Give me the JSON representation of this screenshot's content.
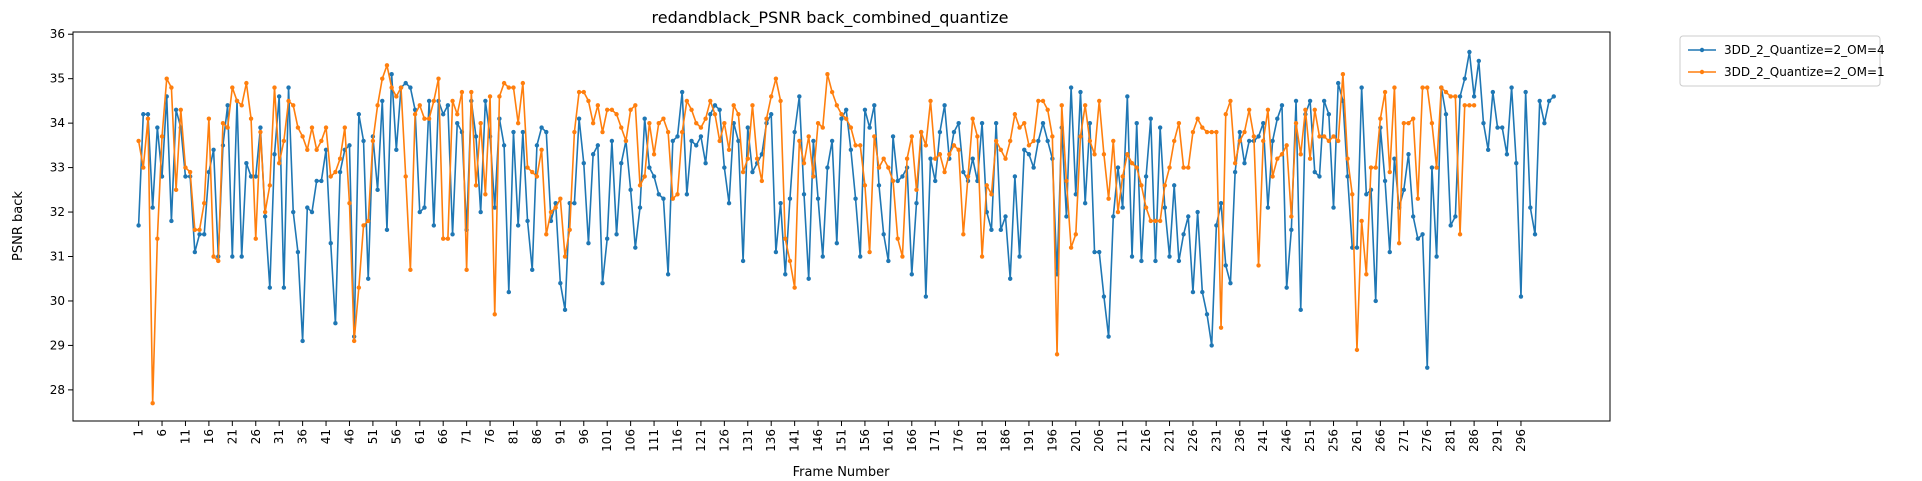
{
  "chart_data": {
    "type": "line",
    "title": "redandblack_PSNR back_combined_quantize",
    "xlabel": "Frame Number",
    "ylabel": "PSNR back",
    "ylim": [
      27.3,
      36.05
    ],
    "yticks": [
      28,
      29,
      30,
      31,
      32,
      33,
      34,
      35,
      36
    ],
    "xticks": [
      1,
      6,
      11,
      16,
      21,
      26,
      31,
      36,
      41,
      46,
      51,
      56,
      61,
      66,
      71,
      76,
      81,
      86,
      91,
      96,
      101,
      106,
      111,
      116,
      121,
      126,
      131,
      136,
      141,
      146,
      151,
      156,
      161,
      166,
      171,
      176,
      181,
      186,
      191,
      196,
      201,
      206,
      211,
      216,
      221,
      226,
      231,
      236,
      241,
      246,
      251,
      256,
      261,
      266,
      271,
      276,
      281,
      286,
      291,
      296
    ],
    "xrange": [
      -13,
      315
    ],
    "legend_position": "outside-top-right",
    "grid": false,
    "series": [
      {
        "name": "3DD_2_Quantize=2_OM=4",
        "color": "#1f77b4",
        "x_start": 1,
        "values": [
          31.7,
          34.2,
          34.2,
          32.1,
          33.9,
          32.8,
          34.6,
          31.8,
          34.3,
          33.9,
          32.8,
          32.8,
          31.1,
          31.5,
          31.5,
          32.9,
          33.4,
          31.0,
          33.5,
          34.4,
          31.0,
          34.5,
          31.0,
          33.1,
          32.8,
          32.8,
          33.9,
          31.9,
          30.3,
          33.3,
          34.6,
          30.3,
          34.8,
          32.0,
          31.1,
          29.1,
          32.1,
          32.0,
          32.7,
          32.7,
          33.4,
          31.3,
          29.5,
          32.9,
          33.4,
          33.5,
          29.2,
          34.2,
          33.6,
          30.5,
          33.7,
          32.5,
          34.5,
          31.6,
          35.1,
          33.4,
          34.8,
          34.9,
          34.8,
          34.3,
          32.0,
          32.1,
          34.5,
          31.7,
          34.5,
          34.2,
          34.4,
          31.5,
          34.0,
          33.8,
          31.6,
          34.5,
          33.7,
          32.0,
          34.5,
          33.7,
          32.1,
          34.1,
          33.5,
          30.2,
          33.8,
          31.7,
          33.8,
          31.8,
          30.7,
          33.5,
          33.9,
          33.8,
          31.8,
          32.2,
          30.4,
          29.8,
          32.2,
          32.2,
          34.1,
          33.1,
          31.3,
          33.3,
          33.5,
          30.4,
          31.4,
          33.6,
          31.5,
          33.1,
          33.6,
          32.5,
          31.2,
          32.1,
          34.1,
          33.0,
          32.8,
          32.4,
          32.3,
          30.6,
          33.6,
          33.7,
          34.7,
          32.4,
          33.6,
          33.5,
          33.7,
          33.1,
          34.2,
          34.4,
          34.3,
          33.0,
          32.2,
          34.0,
          33.6,
          30.9,
          33.9,
          32.9,
          33.1,
          33.3,
          34.0,
          34.2,
          31.1,
          32.2,
          30.6,
          32.3,
          33.8,
          34.6,
          32.4,
          30.5,
          33.6,
          32.3,
          31.0,
          33.0,
          33.6,
          31.3,
          34.1,
          34.3,
          33.4,
          32.3,
          31.0,
          34.3,
          33.9,
          34.4,
          32.6,
          31.5,
          30.9,
          33.7,
          32.7,
          32.8,
          33.0,
          30.6,
          32.2,
          33.8,
          30.1,
          33.2,
          32.7,
          33.8,
          34.4,
          33.2,
          33.8,
          34.0,
          32.9,
          32.7,
          33.2,
          32.7,
          34.0,
          32.0,
          31.6,
          34.0,
          31.6,
          31.9,
          30.5,
          32.8,
          31.0,
          33.4,
          33.3,
          33.0,
          33.6,
          34.0,
          33.6,
          33.2,
          30.6,
          33.9,
          31.9,
          34.8,
          32.4,
          34.7,
          32.2,
          34.0,
          31.1,
          31.1,
          30.1,
          29.2,
          31.9,
          33.0,
          32.1,
          34.6,
          31.0,
          34.0,
          30.9,
          32.8,
          34.1,
          30.9,
          33.9,
          32.1,
          31.0,
          32.6,
          30.9,
          31.5,
          31.9,
          30.2,
          32.0,
          30.2,
          29.7,
          29.0,
          31.7,
          32.2,
          30.8,
          30.4,
          32.9,
          33.8,
          33.1,
          33.6,
          33.6,
          33.7,
          34.0,
          32.1,
          33.6,
          34.1,
          34.4,
          30.3,
          31.6,
          34.5,
          29.8,
          34.2,
          34.5,
          32.9,
          32.8,
          34.5,
          34.2,
          32.1,
          34.9,
          34.5,
          32.8,
          31.2,
          31.2,
          34.8,
          32.4,
          32.5,
          30.0,
          33.9,
          32.7,
          31.1,
          33.2,
          32.1,
          32.5,
          33.3,
          31.9,
          31.4,
          31.5,
          28.5,
          33.0,
          31.0,
          34.8,
          34.2,
          31.7,
          31.9,
          34.6,
          35.0,
          35.6,
          34.6,
          35.4,
          34.0,
          33.4,
          34.7,
          33.9,
          33.9,
          33.3,
          34.8,
          33.1,
          30.1,
          34.7,
          32.1,
          31.5,
          34.5,
          34.0,
          34.5,
          34.6
        ]
      },
      {
        "name": "3DD_2_Quantize=2_OM=1",
        "color": "#ff7f0e",
        "x_start": 1,
        "values": [
          33.6,
          33.0,
          34.1,
          27.7,
          31.4,
          33.7,
          35.0,
          34.8,
          32.5,
          34.3,
          33.0,
          32.9,
          31.6,
          31.6,
          32.2,
          34.1,
          31.0,
          30.9,
          34.0,
          33.9,
          34.8,
          34.5,
          34.4,
          34.9,
          34.1,
          31.4,
          33.8,
          32.0,
          32.6,
          34.8,
          33.1,
          33.6,
          34.5,
          34.4,
          33.9,
          33.7,
          33.4,
          33.9,
          33.4,
          33.6,
          33.9,
          32.8,
          32.9,
          33.2,
          33.9,
          32.2,
          29.1,
          30.3,
          31.7,
          31.8,
          33.6,
          34.4,
          35.0,
          35.3,
          34.8,
          34.6,
          34.8,
          32.8,
          30.7,
          34.2,
          34.4,
          34.1,
          34.1,
          34.5,
          35.0,
          31.4,
          31.4,
          34.5,
          34.2,
          34.7,
          30.7,
          34.7,
          32.6,
          34.0,
          32.4,
          34.6,
          29.7,
          34.6,
          34.9,
          34.8,
          34.8,
          34.0,
          34.9,
          33.0,
          32.9,
          32.8,
          33.4,
          31.5,
          32.0,
          32.1,
          32.3,
          31.0,
          31.6,
          33.8,
          34.7,
          34.7,
          34.5,
          34.0,
          34.4,
          33.8,
          34.3,
          34.3,
          34.2,
          33.9,
          33.6,
          34.3,
          34.4,
          32.6,
          32.8,
          34.0,
          33.3,
          34.0,
          34.1,
          33.8,
          32.3,
          32.4,
          33.8,
          34.5,
          34.3,
          34.0,
          33.9,
          34.1,
          34.5,
          34.2,
          33.6,
          34.0,
          33.4,
          34.4,
          34.2,
          32.9,
          33.2,
          34.4,
          33.2,
          32.7,
          34.1,
          34.6,
          35.0,
          34.5,
          31.4,
          30.9,
          30.3,
          33.6,
          33.1,
          33.7,
          32.8,
          34.0,
          33.9,
          35.1,
          34.7,
          34.4,
          34.2,
          34.1,
          33.9,
          33.5,
          33.5,
          32.6,
          31.1,
          33.7,
          33.0,
          33.2,
          33.0,
          32.7,
          31.4,
          31.0,
          33.2,
          33.7,
          32.5,
          33.8,
          33.5,
          34.5,
          33.2,
          33.3,
          32.9,
          33.3,
          33.5,
          33.4,
          31.5,
          32.8,
          34.1,
          33.7,
          31.0,
          32.6,
          32.4,
          33.6,
          33.4,
          33.2,
          33.6,
          34.2,
          33.9,
          34.0,
          33.5,
          33.6,
          34.5,
          34.5,
          34.3,
          33.7,
          28.8,
          34.4,
          32.7,
          31.2,
          31.5,
          33.7,
          34.4,
          33.6,
          33.3,
          34.5,
          33.3,
          32.3,
          33.6,
          32.0,
          32.8,
          33.3,
          33.1,
          33.0,
          32.6,
          32.1,
          31.8,
          31.8,
          31.8,
          32.6,
          33.0,
          33.6,
          34.0,
          33.0,
          33.0,
          33.8,
          34.1,
          33.9,
          33.8,
          33.8,
          33.8,
          29.4,
          34.2,
          34.5,
          33.1,
          33.6,
          33.8,
          34.3,
          33.7,
          30.8,
          33.6,
          34.3,
          32.8,
          33.2,
          33.3,
          33.5,
          31.9,
          34.0,
          33.3,
          34.3,
          33.2,
          34.3,
          33.7,
          33.7,
          33.6,
          33.7,
          33.6,
          35.1,
          33.2,
          32.4,
          28.9,
          31.8,
          30.6,
          33.0,
          33.0,
          34.1,
          34.7,
          32.9,
          34.8,
          31.3,
          34.0,
          34.0,
          34.1,
          32.3,
          34.8,
          34.8,
          34.0,
          33.0,
          34.8,
          34.7,
          34.6,
          34.6,
          31.5,
          34.4,
          34.4,
          34.4
        ]
      }
    ]
  }
}
